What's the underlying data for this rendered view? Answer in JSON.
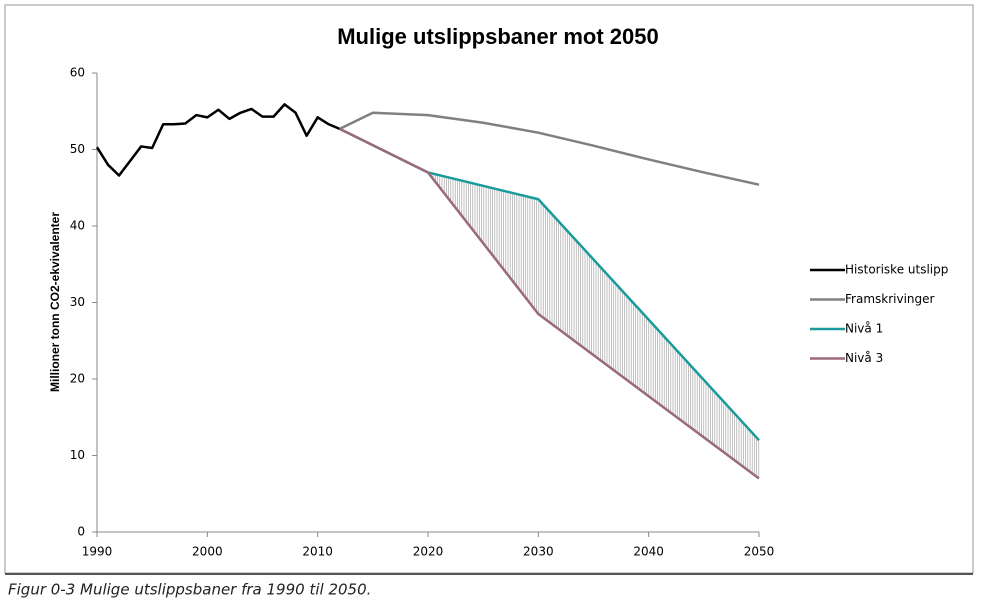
{
  "chart_data": {
    "type": "line",
    "title": "Mulige utslippsbaner mot 2050",
    "y_label": "Millioner tonn CO2-ekvivalenter",
    "caption": "Figur 0-3 Mulige utslippsbaner fra 1990 til 2050.",
    "xlim": [
      1990,
      2050
    ],
    "xticks": [
      1990,
      2000,
      2010,
      2020,
      2030,
      2040,
      2050
    ],
    "ylim": [
      0,
      60
    ],
    "yticks": [
      0,
      10,
      20,
      30,
      40,
      50,
      60
    ],
    "legend": "right",
    "series": [
      {
        "name": "Historiske utslipp",
        "color": "#000000",
        "x": [
          1990,
          1991,
          1992,
          1993,
          1994,
          1995,
          1996,
          1997,
          1998,
          1999,
          2000,
          2001,
          2002,
          2003,
          2004,
          2005,
          2006,
          2007,
          2008,
          2009,
          2010,
          2011,
          2012
        ],
        "values": [
          50.3,
          48,
          46.6,
          48.5,
          50.4,
          50.2,
          53.3,
          53.3,
          53.4,
          54.5,
          54.2,
          55.2,
          54,
          54.8,
          55.3,
          54.3,
          54.3,
          55.9,
          54.8,
          51.8,
          54.2,
          53.3,
          52.7
        ]
      },
      {
        "name": "Framskrivinger",
        "color": "#808080",
        "x": [
          2012,
          2015,
          2020,
          2025,
          2030,
          2035,
          2040,
          2045,
          2050
        ],
        "values": [
          52.7,
          54.8,
          54.5,
          53.5,
          52.2,
          50.5,
          48.7,
          47,
          45.4
        ]
      },
      {
        "name": "Nivå 1",
        "color": "#1a9a9a",
        "x": [
          2012,
          2020,
          2030,
          2050
        ],
        "values": [
          52.7,
          47,
          43.5,
          12
        ]
      },
      {
        "name": "Nivå 3",
        "color": "#9a6a7a",
        "x": [
          2012,
          2020,
          2030,
          2050
        ],
        "values": [
          52.7,
          47,
          28.5,
          7
        ]
      }
    ]
  }
}
